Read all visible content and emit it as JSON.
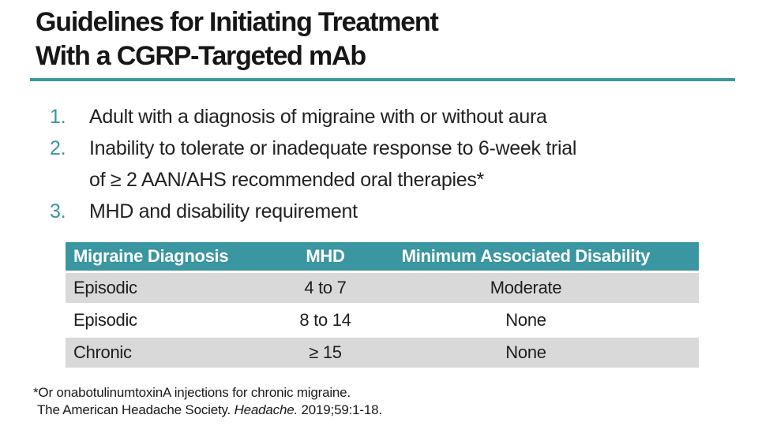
{
  "slide": {
    "title_line1": "Guidelines for Initiating Treatment",
    "title_line2": "With a CGRP-Targeted mAb",
    "accent_color": "#3A96A1"
  },
  "list": {
    "items": [
      {
        "number": "1.",
        "lines": [
          "Adult with a diagnosis of migraine with or without aura"
        ]
      },
      {
        "number": "2.",
        "lines": [
          "Inability to tolerate or inadequate response to 6-week trial",
          "of ≥ 2 AAN/AHS recommended oral therapies*"
        ]
      },
      {
        "number": "3.",
        "lines": [
          "MHD and disability requirement"
        ]
      }
    ]
  },
  "table": {
    "header_bg": "#3A96A1",
    "alt_row_bg": "#D9D9D9",
    "headers": [
      "Migraine Diagnosis",
      "MHD",
      "Minimum Associated Disability"
    ],
    "rows": [
      [
        "Episodic",
        "4 to 7",
        "Moderate"
      ],
      [
        "Episodic",
        "8 to 14",
        "None"
      ],
      [
        "Chronic",
        "≥ 15",
        "None"
      ]
    ]
  },
  "footnotes": {
    "line1": "*Or onabotulinumtoxinA injections for chronic migraine.",
    "line2_pre": "The American Headache Society. ",
    "line2_italic": "Headache.",
    "line2_post": " 2019;59:1-18."
  }
}
